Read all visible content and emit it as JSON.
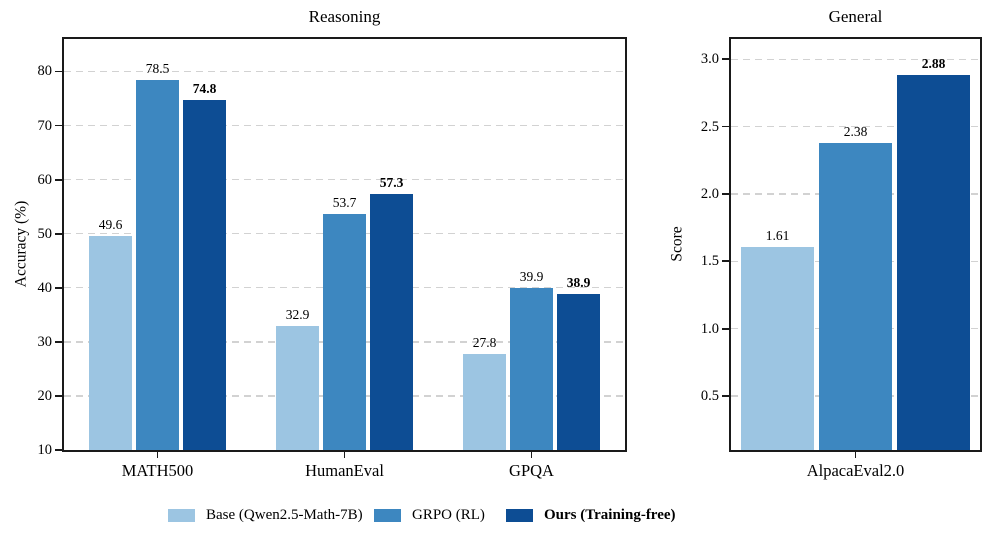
{
  "figure": {
    "background": "#ffffff"
  },
  "colors": {
    "base": "#9cc5e2",
    "grpo": "#3d87c0",
    "ours": "#0d4d94",
    "grid": "#d2d2d2",
    "spine": "#1a1a1a",
    "text": "#000000"
  },
  "legend": {
    "items": [
      {
        "label": "Base (Qwen2.5-Math-7B)",
        "color": "#9cc5e2",
        "bold": false
      },
      {
        "label": "GRPO (RL)",
        "color": "#3d87c0",
        "bold": false
      },
      {
        "label": "Ours (Training-free)",
        "color": "#0d4d94",
        "bold": true
      }
    ]
  },
  "chart_data": [
    {
      "type": "bar",
      "title": "Reasoning",
      "xlabel": "",
      "ylabel": "Accuracy (%)",
      "categories": [
        "MATH500",
        "HumanEval",
        "GPQA"
      ],
      "series": [
        {
          "name": "Base (Qwen2.5-Math-7B)",
          "color": "#9cc5e2",
          "values": [
            49.6,
            32.9,
            27.8
          ],
          "labels": [
            "49.6",
            "32.9",
            "27.8"
          ],
          "bold_labels": false
        },
        {
          "name": "GRPO (RL)",
          "color": "#3d87c0",
          "values": [
            78.5,
            53.7,
            39.9
          ],
          "labels": [
            "78.5",
            "53.7",
            "39.9"
          ],
          "bold_labels": false
        },
        {
          "name": "Ours (Training-free)",
          "color": "#0d4d94",
          "values": [
            74.8,
            57.3,
            38.9
          ],
          "labels": [
            "74.8",
            "57.3",
            "38.9"
          ],
          "bold_labels": true
        }
      ],
      "ylim": [
        10,
        86
      ],
      "yticks": [
        10,
        20,
        30,
        40,
        50,
        60,
        70,
        80
      ],
      "ytick_labels": [
        "10",
        "20",
        "30",
        "40",
        "50",
        "60",
        "70",
        "80"
      ],
      "grid": "dashed-horizontal",
      "legend_position": "below-figure",
      "value_labels": true
    },
    {
      "type": "bar",
      "title": "General",
      "xlabel": "",
      "ylabel": "Score",
      "categories": [
        "AlpacaEval2.0"
      ],
      "series": [
        {
          "name": "Base (Qwen2.5-Math-7B)",
          "color": "#9cc5e2",
          "values": [
            1.61
          ],
          "labels": [
            "1.61"
          ],
          "bold_labels": false
        },
        {
          "name": "GRPO (RL)",
          "color": "#3d87c0",
          "values": [
            2.38
          ],
          "labels": [
            "2.38"
          ],
          "bold_labels": false
        },
        {
          "name": "Ours (Training-free)",
          "color": "#0d4d94",
          "values": [
            2.88
          ],
          "labels": [
            "2.88"
          ],
          "bold_labels": true
        }
      ],
      "ylim": [
        0.1,
        3.15
      ],
      "yticks": [
        0.5,
        1.0,
        1.5,
        2.0,
        2.5,
        3.0
      ],
      "ytick_labels": [
        "0.5",
        "1.0",
        "1.5",
        "2.0",
        "2.5",
        "3.0"
      ],
      "grid": "dashed-horizontal",
      "legend_position": "below-figure",
      "value_labels": true
    }
  ]
}
